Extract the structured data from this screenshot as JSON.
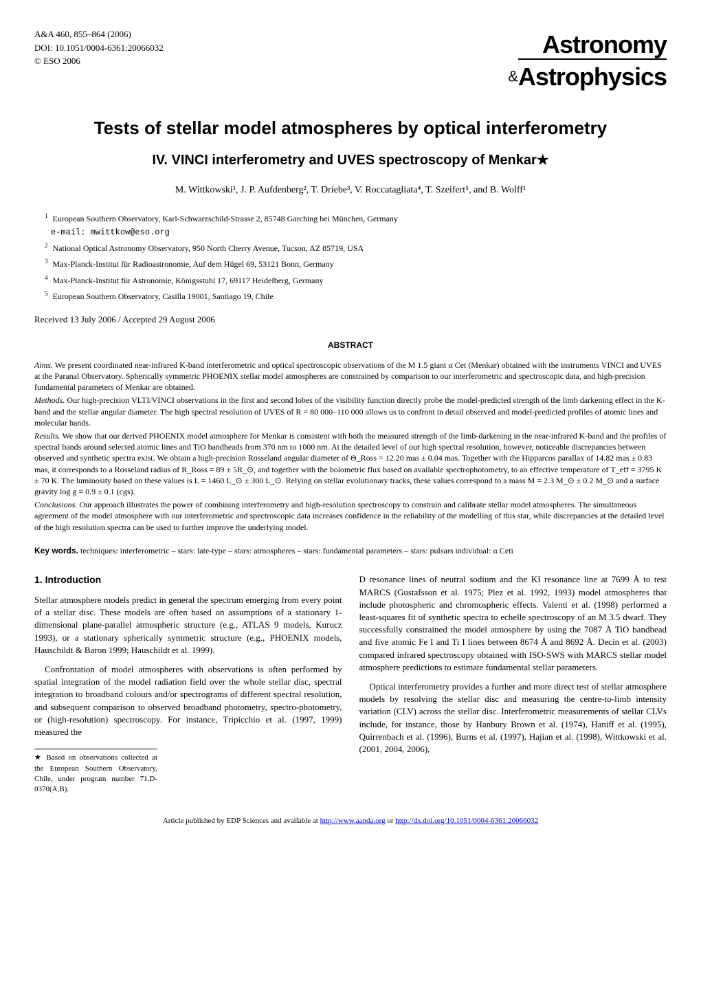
{
  "header": {
    "journal_ref": "A&A 460, 855–864 (2006)",
    "doi": "DOI: 10.1051/0004-6361:20066032",
    "copyright": "© ESO 2006",
    "logo_top": "Astronomy",
    "logo_amp": "&",
    "logo_bottom": "Astrophysics"
  },
  "title": "Tests of stellar model atmospheres by optical interferometry",
  "subtitle": "IV. VINCI interferometry and UVES spectroscopy of Menkar★",
  "authors": "M. Wittkowski¹, J. P. Aufdenberg², T. Driebe³, V. Roccatagliata⁴, T. Szeifert⁵, and B. Wolff¹",
  "affiliations": [
    {
      "num": "1",
      "text": "European Southern Observatory, Karl-Schwarzschild-Strasse 2, 85748 Garching bei München, Germany",
      "email": "e-mail: mwittkow@eso.org"
    },
    {
      "num": "2",
      "text": "National Optical Astronomy Observatory, 950 North Cherry Avenue, Tucson, AZ 85719, USA"
    },
    {
      "num": "3",
      "text": "Max-Planck-Institut für Radioastronomie, Auf dem Hügel 69, 53121 Bonn, Germany"
    },
    {
      "num": "4",
      "text": "Max-Planck-Institut für Astronomie, Königsstuhl 17, 69117 Heidelberg, Germany"
    },
    {
      "num": "5",
      "text": "European Southern Observatory, Casilla 19001, Santiago 19, Chile"
    }
  ],
  "received": "Received 13 July 2006 / Accepted 29 August 2006",
  "abstract_heading": "ABSTRACT",
  "abstract": {
    "aims_label": "Aims.",
    "aims": " We present coordinated near-infrared K-band interferometric and optical spectroscopic observations of the M 1.5 giant α Cet (Menkar) obtained with the instruments VINCI and UVES at the Paranal Observatory. Spherically symmetric PHOENIX stellar model atmospheres are constrained by comparison to our interferometric and spectroscopic data, and high-precision fundamental parameters of Menkar are obtained.",
    "methods_label": "Methods.",
    "methods": " Our high-precision VLTI/VINCI observations in the first and second lobes of the visibility function directly probe the model-predicted strength of the limb darkening effect in the K-band and the stellar angular diameter. The high spectral resolution of UVES of R = 80 000–110 000 allows us to confront in detail observed and model-predicted profiles of atomic lines and molecular bands.",
    "results_label": "Results.",
    "results": " We show that our derived PHOENIX model atmosphere for Menkar is consistent with both the measured strength of the limb-darkening in the near-infrared K-band and the profiles of spectral bands around selected atomic lines and TiO bandheads from 370 nm to 1000 nm. At the detailed level of our high spectral resolution, however, noticeable discrepancies between observed and synthetic spectra exist. We obtain a high-precision Rosseland angular diameter of Θ_Ross = 12.20 mas ± 0.04 mas. Together with the Hipparcos parallax of 14.82 mas ± 0.83 mas, it corresponds to a Rosseland radius of R_Ross = 89 ± 5R_⊙, and together with the bolometric flux based on available spectrophotometry, to an effective temperature of T_eff = 3795 K ± 70 K. The luminosity based on these values is L = 1460 L_⊙ ± 300 L_⊙. Relying on stellar evolutionary tracks, these values correspond to a mass M = 2.3 M_⊙ ± 0.2 M_⊙ and a surface gravity log g = 0.9 ± 0.1 (cgs).",
    "conclusions_label": "Conclusions.",
    "conclusions": " Our approach illustrates the power of combining interferometry and high-resolution spectroscopy to constrain and calibrate stellar model atmospheres. The simultaneous agreement of the model atmosphere with our interferometric and spectroscopic data increases confidence in the reliability of the modelling of this star, while discrepancies at the detailed level of the high resolution spectra can be used to further improve the underlying model."
  },
  "keywords_label": "Key words.",
  "keywords": " techniques: interferometric – stars: late-type – stars: atmospheres – stars: fundamental parameters – stars: pulsars individual: α Ceti",
  "section1_heading": "1. Introduction",
  "col1": {
    "p1": "Stellar atmosphere models predict in general the spectrum emerging from every point of a stellar disc. These models are often based on assumptions of a stationary 1-dimensional plane-parallel atmospheric structure (e.g., ATLAS 9 models, Kurucz 1993), or a stationary spherically symmetric structure (e.g., PHOENIX models, Hauschildt & Baron 1999; Hauschildt et al. 1999).",
    "p2": "Confrontation of model atmospheres with observations is often performed by spatial integration of the model radiation field over the whole stellar disc, spectral integration to broadband colours and/or spectrograms of different spectral resolution, and subsequent comparison to observed broadband photometry, spectro-photometry, or (high-resolution) spectroscopy. For instance, Tripicchio et al. (1997, 1999) measured the"
  },
  "col2": {
    "p1": "D resonance lines of neutral sodium and the KI resonance line at 7699 Å to test MARCS (Gustafsson et al. 1975; Plez et al. 1992, 1993) model atmospheres that include photospheric and chromospheric effects. Valenti et al. (1998) performed a least-squares fit of synthetic spectra to echelle spectroscopy of an M 3.5 dwarf. They successfully constrained the model atmosphere by using the 7087 Å TiO bandhead and five atomic Fe I and Ti I lines between 8674 Å and 8692 Å. Decin et al. (2003) compared infrared spectroscopy obtained with ISO-SWS with MARCS stellar model atmosphere predictions to estimate fundamental stellar parameters.",
    "p2": "Optical interferometry provides a further and more direct test of stellar atmosphere models by resolving the stellar disc and measuring the centre-to-limb intensity variation (CLV) across the stellar disc. Interferometric measurements of stellar CLVs include, for instance, those by Hanbury Brown et al. (1974), Haniff et al. (1995), Quirrenbach et al. (1996), Burns et al. (1997), Hajian et al. (1998), Wittkowski et al. (2001, 2004, 2006),"
  },
  "footnote": "★ Based on observations collected at the European Southern Observatory, Chile, under program number 71.D-0370(A,B).",
  "footer": {
    "text": "Article published by EDP Sciences and available at ",
    "link1": "http://www.aanda.org",
    "or": " or ",
    "link2": "http://dx.doi.org/10.1051/0004-6361:20066032"
  }
}
